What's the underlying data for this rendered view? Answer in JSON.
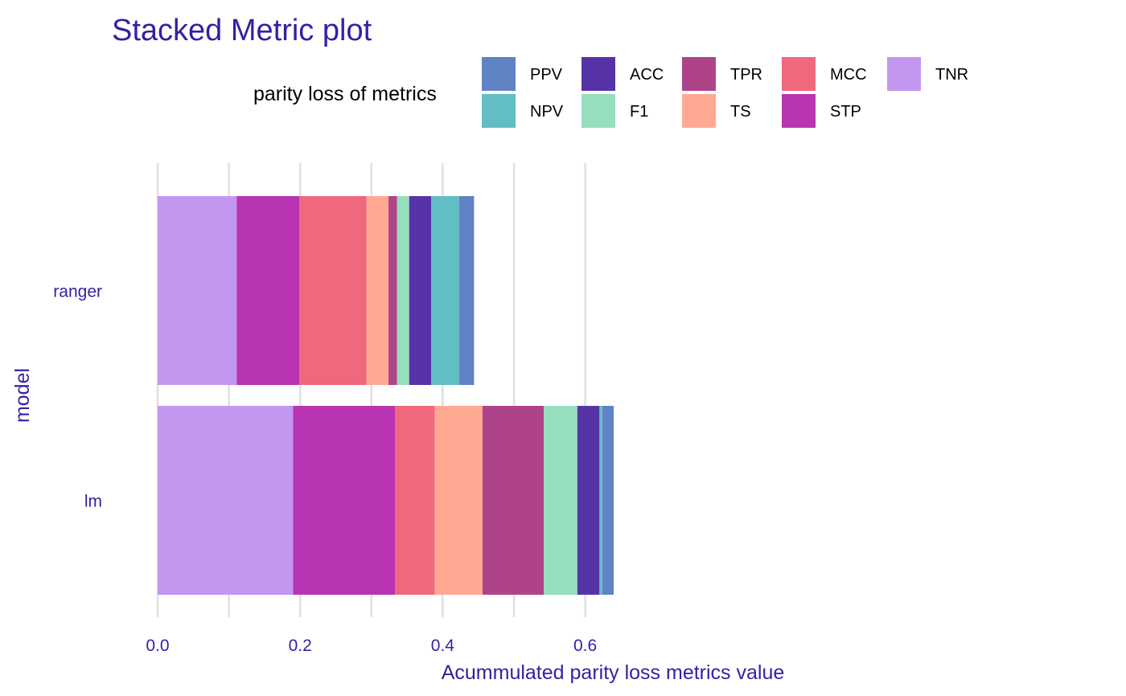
{
  "chart_data": {
    "type": "bar",
    "orientation": "horizontal",
    "stacked": true,
    "title": "Stacked Metric plot",
    "xlabel": "Acummulated parity loss metrics value",
    "ylabel": "model",
    "xlim": [
      0,
      0.64
    ],
    "xticks": [
      "0.0",
      "0.2",
      "0.4",
      "0.6"
    ],
    "xtick_values": [
      0,
      0.2,
      0.4,
      0.6
    ],
    "grid": true,
    "legend": {
      "title": "parity loss of metrics",
      "placement": "top",
      "entries": [
        "PPV",
        "NPV",
        "ACC",
        "F1",
        "TPR",
        "TS",
        "MCC",
        "STP",
        "TNR"
      ]
    },
    "categories": [
      "ranger",
      "lm"
    ],
    "stack_order": [
      "TNR",
      "STP",
      "MCC",
      "TS",
      "TPR",
      "F1",
      "ACC",
      "NPV",
      "PPV"
    ],
    "series": [
      {
        "name": "TNR",
        "color": "#c397ef",
        "values": [
          0.111,
          0.19
        ]
      },
      {
        "name": "STP",
        "color": "#b834b2",
        "values": [
          0.088,
          0.143
        ]
      },
      {
        "name": "MCC",
        "color": "#f0687e",
        "values": [
          0.094,
          0.056
        ]
      },
      {
        "name": "TS",
        "color": "#ffa993",
        "values": [
          0.031,
          0.067
        ]
      },
      {
        "name": "TPR",
        "color": "#ae4389",
        "values": [
          0.012,
          0.086
        ]
      },
      {
        "name": "F1",
        "color": "#95dfbe",
        "values": [
          0.017,
          0.047
        ]
      },
      {
        "name": "ACC",
        "color": "#5733a8",
        "values": [
          0.031,
          0.031
        ]
      },
      {
        "name": "NPV",
        "color": "#63bdc4",
        "values": [
          0.039,
          0.004
        ]
      },
      {
        "name": "PPV",
        "color": "#5f83c5",
        "values": [
          0.021,
          0.016
        ]
      }
    ]
  }
}
